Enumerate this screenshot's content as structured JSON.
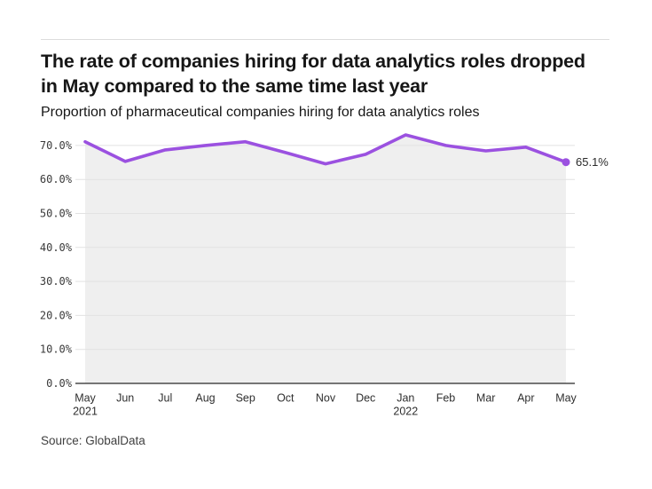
{
  "header": {
    "title": "The rate of companies hiring for data analytics roles dropped in May compared to the same time last year",
    "subtitle": "Proportion of pharmaceutical companies hiring for data analytics roles"
  },
  "footer": {
    "source": "Source: GlobalData"
  },
  "chart_data": {
    "type": "line",
    "title": "The rate of companies hiring for data analytics roles dropped in May compared to the same time last year",
    "subtitle": "Proportion of pharmaceutical companies hiring for data analytics roles",
    "categories": [
      {
        "month": "May",
        "year": "2021"
      },
      {
        "month": "Jun"
      },
      {
        "month": "Jul"
      },
      {
        "month": "Aug"
      },
      {
        "month": "Sep"
      },
      {
        "month": "Oct"
      },
      {
        "month": "Nov"
      },
      {
        "month": "Dec"
      },
      {
        "month": "Jan",
        "year": "2022"
      },
      {
        "month": "Feb"
      },
      {
        "month": "Mar"
      },
      {
        "month": "Apr"
      },
      {
        "month": "May"
      }
    ],
    "series": [
      {
        "name": "Proportion of pharmaceutical companies hiring for data analytics roles",
        "values": [
          71.1,
          65.3,
          68.7,
          70.0,
          71.1,
          67.9,
          64.6,
          67.4,
          73.1,
          70.0,
          68.4,
          69.5,
          65.1
        ]
      }
    ],
    "unit": "%",
    "xlabel": "",
    "ylabel": "",
    "ylim": [
      0,
      75
    ],
    "y_tick_labels": [
      "0.0%",
      "10.0%",
      "20.0%",
      "30.0%",
      "40.0%",
      "50.0%",
      "60.0%",
      "70.0%"
    ],
    "end_label": "65.1%",
    "grid": true,
    "legend": "none",
    "line_color": "#9b51e0",
    "area_color": "#efefef",
    "grid_color": "#e2e2e2",
    "axis_color": "#4a4a4a"
  }
}
